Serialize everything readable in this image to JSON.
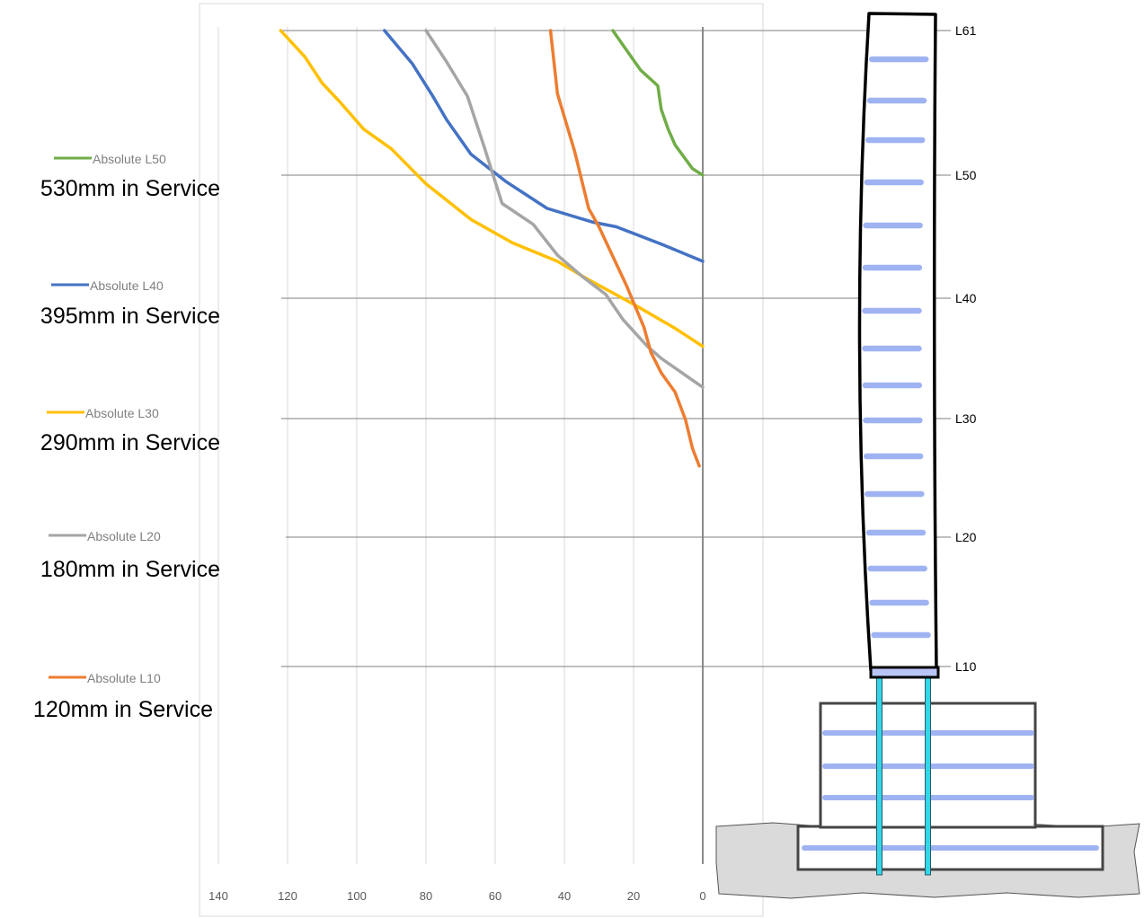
{
  "chart_data": {
    "type": "line",
    "x_axis": {
      "ticks": [
        140,
        120,
        100,
        80,
        60,
        40,
        20,
        0
      ],
      "range": [
        140,
        0
      ],
      "reversed": true
    },
    "grid": true,
    "series": [
      {
        "name": "Absolute L50",
        "color": "#70ad47",
        "service": "530mm in Service",
        "points": [
          [
            26,
            61
          ],
          [
            22,
            59.5
          ],
          [
            18,
            58
          ],
          [
            13,
            56.8
          ],
          [
            12,
            55
          ],
          [
            10,
            53.5
          ],
          [
            8,
            52.3
          ],
          [
            3,
            50.5
          ],
          [
            0,
            50
          ]
        ]
      },
      {
        "name": "Absolute L40",
        "color": "#4472c4",
        "service": "395mm in Service",
        "points": [
          [
            92,
            61
          ],
          [
            84,
            58.5
          ],
          [
            78,
            56
          ],
          [
            74,
            54.2
          ],
          [
            67,
            51.6
          ],
          [
            57,
            49.5
          ],
          [
            45,
            47.3
          ],
          [
            32,
            46.2
          ],
          [
            25,
            45.8
          ],
          [
            12,
            44.4
          ],
          [
            0,
            43
          ]
        ]
      },
      {
        "name": "Absolute L30",
        "color": "#ffc000",
        "service": "290mm in Service",
        "points": [
          [
            122,
            61
          ],
          [
            115,
            59
          ],
          [
            110,
            57
          ],
          [
            105,
            55.6
          ],
          [
            98,
            53.5
          ],
          [
            90,
            52
          ],
          [
            80,
            49.3
          ],
          [
            67,
            46.4
          ],
          [
            55,
            44.5
          ],
          [
            42,
            43
          ],
          [
            33,
            41.5
          ],
          [
            20,
            39.5
          ],
          [
            8,
            37.5
          ],
          [
            0,
            36
          ]
        ]
      },
      {
        "name": "Absolute L20",
        "color": "#a5a5a5",
        "service": "180mm in Service",
        "points": [
          [
            80,
            61
          ],
          [
            74,
            58.6
          ],
          [
            68,
            56
          ],
          [
            63,
            52
          ],
          [
            58,
            47.7
          ],
          [
            49,
            46
          ],
          [
            42,
            43.5
          ],
          [
            35,
            41.8
          ],
          [
            28,
            40.3
          ],
          [
            23,
            38.2
          ],
          [
            16,
            36
          ],
          [
            12,
            35
          ],
          [
            6,
            33.8
          ],
          [
            0,
            32.6
          ]
        ]
      },
      {
        "name": "Absolute L10",
        "color": "#ed7d31",
        "service": "120mm in Service",
        "points": [
          [
            44,
            61
          ],
          [
            42,
            56.2
          ],
          [
            37,
            51.8
          ],
          [
            33,
            47.3
          ],
          [
            30,
            45.8
          ],
          [
            26,
            43.4
          ],
          [
            22,
            41
          ],
          [
            17,
            37.6
          ],
          [
            15,
            35.5
          ],
          [
            12,
            33.8
          ],
          [
            8,
            32.2
          ],
          [
            5,
            29.9
          ],
          [
            3,
            27.5
          ],
          [
            1,
            26
          ]
        ]
      }
    ]
  },
  "building": {
    "levels": [
      "L61",
      "L50",
      "L40",
      "L30",
      "L20",
      "L10"
    ]
  }
}
